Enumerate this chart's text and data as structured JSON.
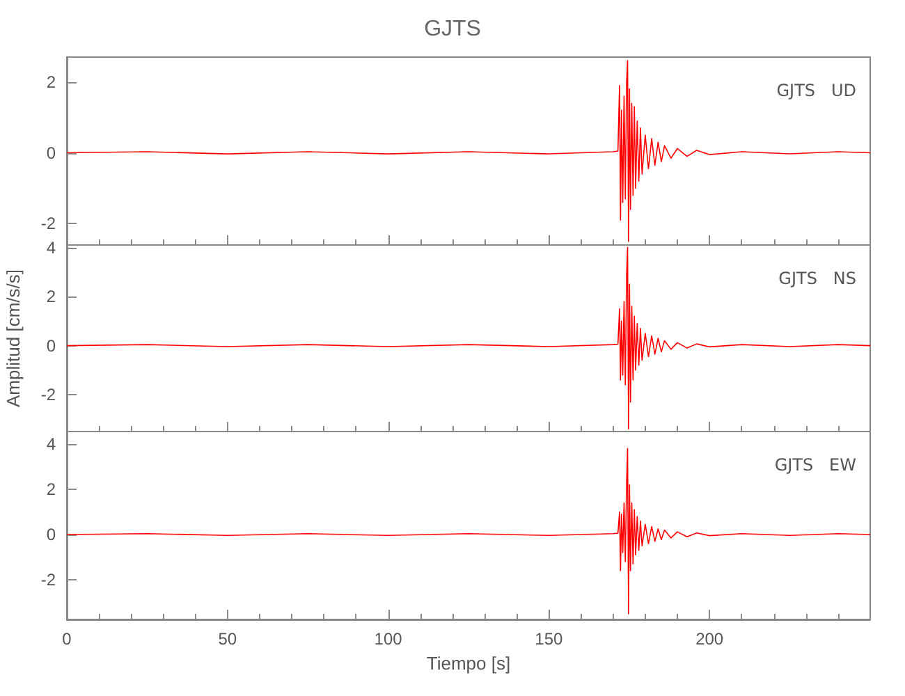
{
  "chart_data": [
    {
      "type": "line",
      "title": "GJTS",
      "annotations": [
        "GJTS   UD"
      ],
      "xlim": [
        0,
        250
      ],
      "xticks": [
        0,
        50,
        100,
        150,
        200
      ],
      "ylim": [
        -2.6,
        2.7
      ],
      "yticks": [
        -2,
        0,
        2
      ],
      "tick_labels": "y",
      "grid": false,
      "marker": "none",
      "line_style": "solid",
      "x": [
        0,
        25,
        50,
        75,
        100,
        125,
        150,
        170,
        171.5,
        172,
        172.3,
        172.6,
        173,
        173.4,
        173.8,
        174.2,
        174.5,
        174.8,
        175.1,
        175.4,
        175.8,
        176.2,
        176.6,
        177,
        177.5,
        178,
        178.5,
        179,
        180,
        181,
        182,
        183,
        184,
        185,
        186,
        188,
        190,
        193,
        196,
        200,
        210,
        225,
        240,
        250
      ],
      "series": [
        {
          "color": "#ff0000",
          "values": [
            0,
            0.03,
            -0.03,
            0.03,
            -0.03,
            0.03,
            -0.03,
            0.03,
            0.05,
            1.9,
            -1.9,
            1.2,
            -1.4,
            1.6,
            -1.3,
            2.0,
            2.6,
            -2.5,
            1.8,
            -1.6,
            1.4,
            -1.2,
            1.3,
            -1.0,
            0.9,
            -0.8,
            0.7,
            -0.6,
            0.5,
            -0.45,
            0.4,
            -0.35,
            0.3,
            -0.25,
            0.2,
            -0.15,
            0.12,
            -0.1,
            0.07,
            -0.05,
            0.03,
            -0.03,
            0.03,
            0
          ]
        }
      ]
    },
    {
      "type": "line",
      "ylabel": "Amplitud [cm/s/s]",
      "annotations": [
        "GJTS   NS"
      ],
      "xlim": [
        0,
        250
      ],
      "xticks": [
        0,
        50,
        100,
        150,
        200
      ],
      "ylim": [
        -3.5,
        4.1
      ],
      "yticks": [
        -2,
        0,
        2,
        4
      ],
      "tick_labels": "y",
      "grid": false,
      "marker": "none",
      "line_style": "solid",
      "x": [
        0,
        25,
        50,
        75,
        100,
        125,
        150,
        170,
        171.5,
        172,
        172.3,
        172.6,
        173,
        173.4,
        173.8,
        174.2,
        174.5,
        174.8,
        175.1,
        175.4,
        175.8,
        176.2,
        176.6,
        177,
        177.5,
        178,
        178.5,
        179,
        180,
        181,
        182,
        183,
        184,
        185,
        186,
        188,
        190,
        193,
        196,
        200,
        210,
        225,
        240,
        250
      ],
      "series": [
        {
          "color": "#ff0000",
          "values": [
            0,
            0.04,
            -0.04,
            0.04,
            -0.04,
            0.04,
            -0.04,
            0.04,
            0.06,
            1.5,
            -1.4,
            1.0,
            -1.2,
            1.8,
            -1.6,
            2.9,
            4.0,
            -3.4,
            2.5,
            -2.3,
            1.6,
            -1.4,
            1.2,
            -1.0,
            0.9,
            -0.8,
            0.7,
            -0.6,
            0.5,
            -0.45,
            0.4,
            -0.35,
            0.3,
            -0.25,
            0.2,
            -0.15,
            0.12,
            -0.1,
            0.07,
            -0.05,
            0.04,
            -0.04,
            0.04,
            0
          ]
        }
      ]
    },
    {
      "type": "line",
      "xlabel": "Tiempo [s]",
      "annotations": [
        "GJTS   EW"
      ],
      "xlim": [
        0,
        250
      ],
      "xticks": [
        0,
        50,
        100,
        150,
        200
      ],
      "ylim": [
        -3.75,
        4.55
      ],
      "yticks": [
        -2,
        0,
        2,
        4
      ],
      "grid": false,
      "marker": "none",
      "line_style": "solid",
      "x": [
        0,
        25,
        50,
        75,
        100,
        125,
        150,
        170,
        171.5,
        172,
        172.3,
        172.6,
        173,
        173.4,
        173.8,
        174.2,
        174.5,
        174.8,
        175.1,
        175.4,
        175.8,
        176.2,
        176.6,
        177,
        177.5,
        178,
        178.5,
        179,
        180,
        181,
        182,
        183,
        184,
        185,
        186,
        188,
        190,
        193,
        196,
        200,
        210,
        225,
        240,
        250
      ],
      "series": [
        {
          "color": "#ff0000",
          "values": [
            0,
            0.04,
            -0.04,
            0.04,
            -0.04,
            0.04,
            -0.04,
            0.04,
            0.06,
            1.0,
            -1.6,
            0.9,
            -0.8,
            1.4,
            -1.2,
            2.3,
            3.8,
            -3.5,
            2.2,
            -1.6,
            1.4,
            -1.3,
            1.1,
            -0.9,
            0.8,
            -0.7,
            0.6,
            -0.5,
            0.45,
            -0.4,
            0.35,
            -0.3,
            0.25,
            -0.22,
            0.2,
            -0.15,
            0.12,
            -0.1,
            0.07,
            -0.05,
            0.04,
            -0.04,
            0.04,
            0
          ]
        }
      ]
    }
  ]
}
